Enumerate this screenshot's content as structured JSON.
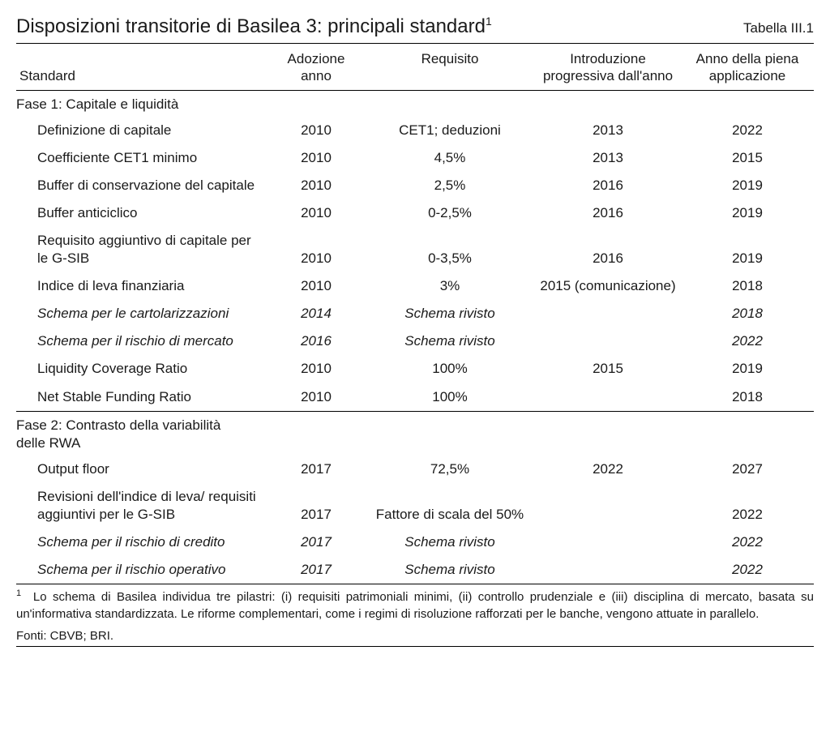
{
  "title": "Disposizioni transitorie di Basilea 3: principali standard",
  "title_footnote_marker": "1",
  "table_label": "Tabella III.1",
  "columns": {
    "standard": "Standard",
    "adoption": "Adozione anno",
    "requirement": "Requisito",
    "phase_in": "Introduzione progressiva dall'anno",
    "full_app": "Anno della piena applicazione"
  },
  "section1_title": "Fase 1: Capitale e liquidità",
  "section2_title_line1": "Fase 2: Contrasto della variabilità",
  "section2_title_line2": "delle RWA",
  "s1": [
    {
      "std": "Definizione di capitale",
      "ado": "2010",
      "req": "CET1; deduzioni",
      "intro": "2013",
      "full": "2022",
      "italic": false
    },
    {
      "std": "Coefficiente CET1 minimo",
      "ado": "2010",
      "req": "4,5%",
      "intro": "2013",
      "full": "2015",
      "italic": false
    },
    {
      "std": "Buffer di conservazione del capitale",
      "ado": "2010",
      "req": "2,5%",
      "intro": "2016",
      "full": "2019",
      "italic": false
    },
    {
      "std": "Buffer anticiclico",
      "ado": "2010",
      "req": "0-2,5%",
      "intro": "2016",
      "full": "2019",
      "italic": false
    },
    {
      "std": "Requisito aggiuntivo di capitale per le G-SIB",
      "ado": "2010",
      "req": "0-3,5%",
      "intro": "2016",
      "full": "2019",
      "italic": false
    },
    {
      "std": "Indice di leva finanziaria",
      "ado": "2010",
      "req": "3%",
      "intro": "2015 (comunicazione)",
      "full": "2018",
      "italic": false
    },
    {
      "std": "Schema per le cartolarizzazioni",
      "ado": "2014",
      "req": "Schema rivisto",
      "intro": "",
      "full": "2018",
      "italic": true
    },
    {
      "std": "Schema per il rischio di mercato",
      "ado": "2016",
      "req": "Schema rivisto",
      "intro": "",
      "full": "2022",
      "italic": true
    },
    {
      "std": "Liquidity Coverage Ratio",
      "ado": "2010",
      "req": "100%",
      "intro": "2015",
      "full": "2019",
      "italic": false
    },
    {
      "std": "Net Stable Funding Ratio",
      "ado": "2010",
      "req": "100%",
      "intro": "",
      "full": "2018",
      "italic": false
    }
  ],
  "s2": [
    {
      "std": "Output floor",
      "ado": "2017",
      "req": "72,5%",
      "intro": "2022",
      "full": "2027",
      "italic": false
    },
    {
      "std": "Revisioni dell'indice di leva/ requisiti aggiuntivi per le G-SIB",
      "ado": "2017",
      "req": "Fattore di scala del 50%",
      "intro": "",
      "full": "2022",
      "italic": false
    },
    {
      "std": "Schema per il rischio di credito",
      "ado": "2017",
      "req": "Schema rivisto",
      "intro": "",
      "full": "2022",
      "italic": true
    },
    {
      "std": "Schema per il rischio operativo",
      "ado": "2017",
      "req": "Schema rivisto",
      "intro": "",
      "full": "2022",
      "italic": true
    }
  ],
  "footnote_marker": "1",
  "footnote_text": "Lo schema di Basilea individua tre pilastri: (i) requisiti patrimoniali minimi, (ii) controllo prudenziale e (iii) disciplina di mercato, basata su un'informativa standardizzata. Le riforme complementari, come i regimi di risoluzione rafforzati per le banche, vengono attuate in parallelo.",
  "sources": "Fonti: CBVB; BRI."
}
